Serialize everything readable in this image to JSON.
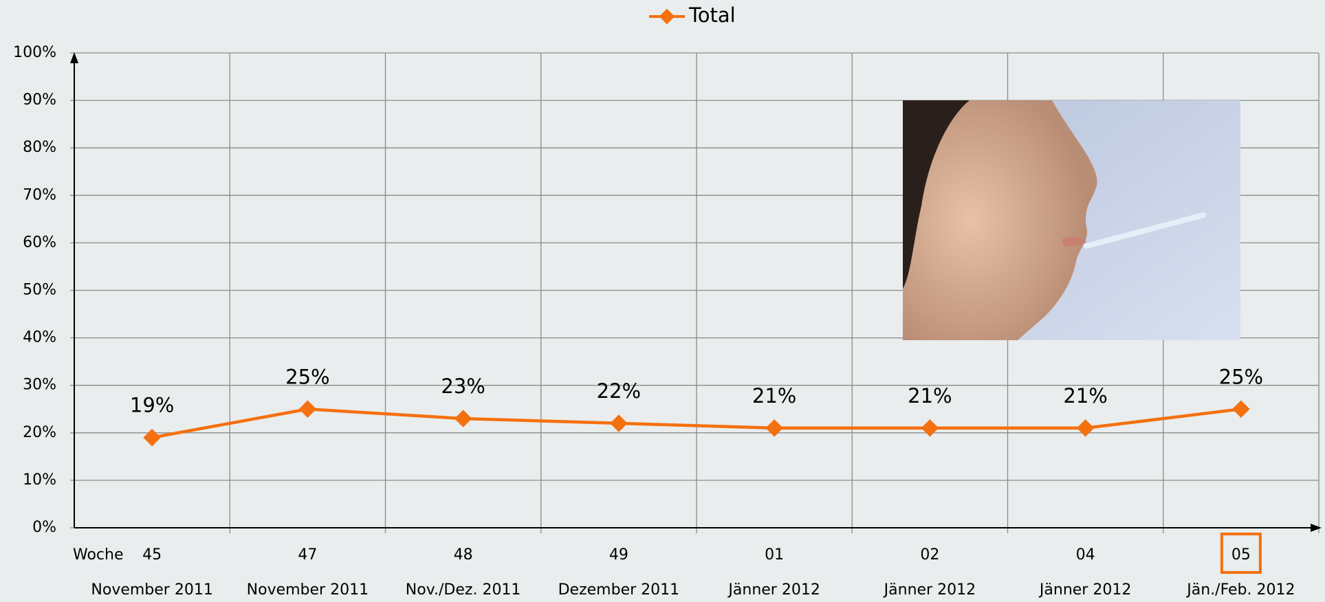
{
  "chart_data": {
    "type": "line",
    "legend": "top",
    "grid": true,
    "xlabel": "Woche",
    "categories": [
      "45",
      "47",
      "48",
      "49",
      "01",
      "02",
      "04",
      "05"
    ],
    "category_subtitles": [
      "November 2011",
      "November 2011",
      "Nov./Dez. 2011",
      "Dezember 2011",
      "Jänner 2012",
      "Jänner 2012",
      "Jänner 2012",
      "Jän./Feb. 2012"
    ],
    "highlight_category": 7,
    "series": [
      {
        "name": "Total",
        "color": "#f5700f",
        "values": [
          19,
          25,
          23,
          22,
          21,
          21,
          21,
          25
        ],
        "value_labels": [
          "19%",
          "25%",
          "23%",
          "22%",
          "21%",
          "21%",
          "21%",
          "25%"
        ]
      }
    ],
    "ylim": [
      0,
      100
    ],
    "yticks": [
      {
        "value": 0,
        "label": "0%"
      },
      {
        "value": 10,
        "label": "10%"
      },
      {
        "value": 20,
        "label": "20%"
      },
      {
        "value": 30,
        "label": "30%"
      },
      {
        "value": 40,
        "label": "40%"
      },
      {
        "value": 50,
        "label": "50%"
      },
      {
        "value": 60,
        "label": "60%"
      },
      {
        "value": 70,
        "label": "70%"
      },
      {
        "value": 80,
        "label": "80%"
      },
      {
        "value": 90,
        "label": "90%"
      },
      {
        "value": 100,
        "label": "100%"
      }
    ]
  }
}
